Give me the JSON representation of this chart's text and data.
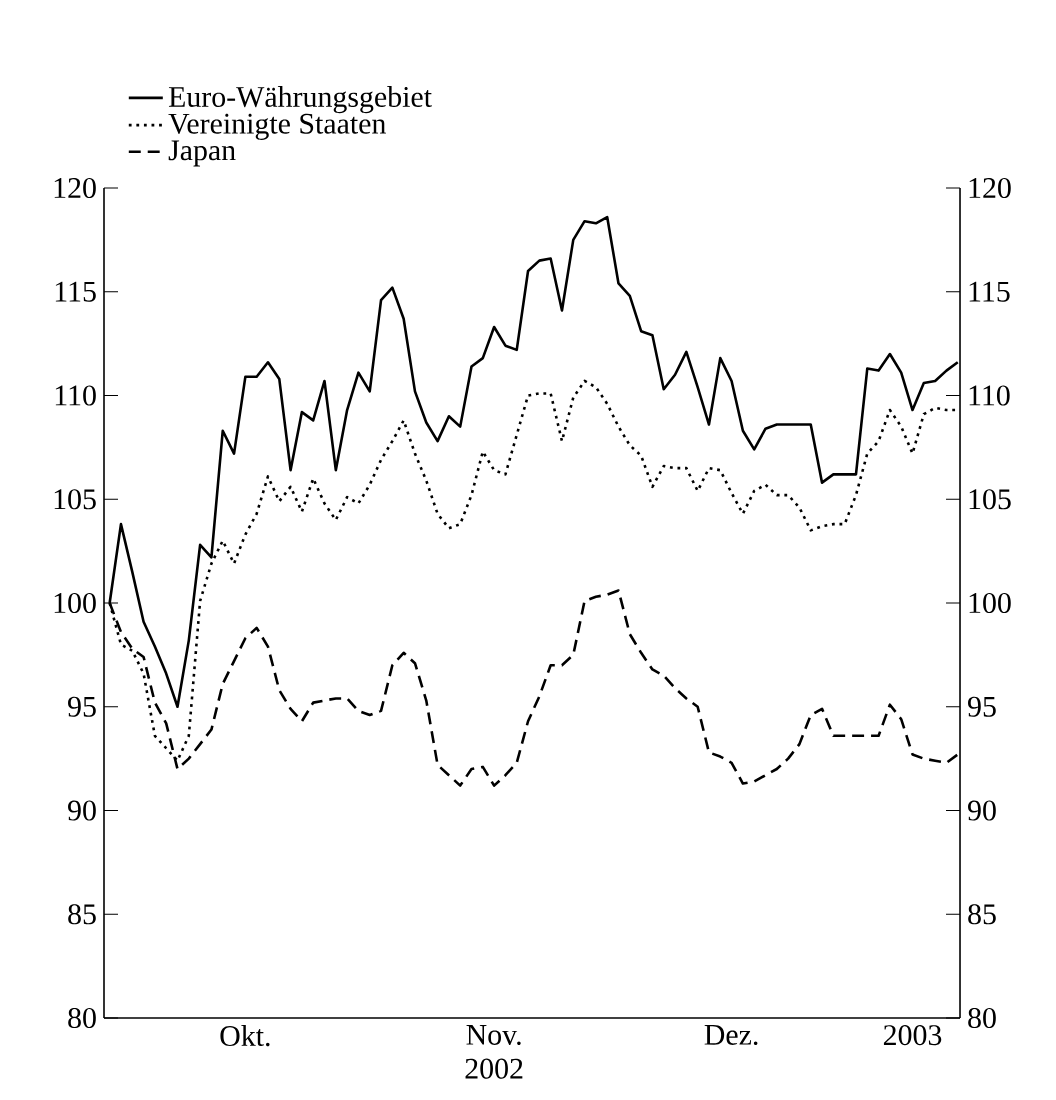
{
  "chart_data": {
    "type": "line",
    "legend": "top left",
    "grid": false,
    "categories": [
      null,
      null,
      null,
      null,
      null,
      null,
      null,
      null,
      null,
      null,
      null,
      null,
      "Okt.",
      null,
      null,
      null,
      null,
      null,
      null,
      null,
      null,
      null,
      null,
      null,
      null,
      null,
      null,
      null,
      null,
      null,
      null,
      null,
      null,
      null,
      "Nov. 2002",
      null,
      null,
      null,
      null,
      null,
      null,
      null,
      null,
      null,
      null,
      null,
      null,
      null,
      null,
      null,
      null,
      null,
      null,
      null,
      null,
      "Dez.",
      null,
      null,
      null,
      null,
      null,
      null,
      null,
      null,
      null,
      null,
      null,
      null,
      null,
      null,
      null,
      "2003",
      null,
      null,
      null,
      null
    ],
    "series": [
      {
        "name": "Euro-Währungsgebiet",
        "color": "#000000",
        "line_style": "solid",
        "values": [
          100.0,
          103.8,
          101.5,
          99.1,
          97.9,
          96.6,
          95.0,
          98.2,
          102.8,
          102.2,
          108.3,
          107.2,
          110.9,
          110.9,
          111.6,
          110.8,
          106.4,
          109.2,
          108.8,
          110.7,
          106.4,
          109.3,
          111.1,
          110.2,
          114.6,
          115.2,
          113.7,
          110.2,
          108.7,
          107.8,
          109.0,
          108.5,
          111.4,
          111.8,
          113.3,
          112.4,
          112.2,
          116.0,
          116.5,
          116.6,
          114.1,
          117.5,
          118.4,
          118.3,
          118.6,
          115.4,
          114.8,
          113.1,
          112.9,
          110.3,
          111.0,
          112.1,
          110.4,
          108.6,
          111.8,
          110.7,
          108.3,
          107.4,
          108.4,
          108.6,
          108.6,
          108.6,
          108.6,
          105.8,
          106.2,
          106.2,
          106.2,
          111.3,
          111.2,
          112.0,
          111.1,
          109.3,
          110.6,
          110.7,
          111.2,
          111.6
        ]
      },
      {
        "name": "Vereinigte Staaten",
        "color": "#000000",
        "line_style": "dotted",
        "values": [
          100.0,
          98.0,
          97.7,
          96.6,
          93.6,
          93.0,
          92.4,
          93.6,
          100.1,
          101.9,
          103.0,
          101.9,
          103.3,
          104.3,
          106.1,
          104.9,
          105.6,
          104.4,
          106.0,
          104.8,
          104.0,
          105.1,
          104.8,
          105.7,
          106.9,
          107.8,
          108.8,
          107.2,
          105.9,
          104.3,
          103.6,
          103.8,
          105.2,
          107.3,
          106.4,
          106.2,
          108.1,
          110.0,
          110.1,
          110.1,
          107.8,
          109.9,
          110.7,
          110.4,
          109.6,
          108.5,
          107.6,
          107.1,
          105.6,
          106.6,
          106.5,
          106.5,
          105.4,
          106.5,
          106.4,
          105.3,
          104.3,
          105.4,
          105.7,
          105.2,
          105.2,
          104.6,
          103.5,
          103.7,
          103.8,
          103.8,
          105.2,
          107.2,
          107.8,
          109.3,
          108.5,
          107.2,
          109.1,
          109.4,
          109.3,
          109.3
        ]
      },
      {
        "name": "Japan",
        "color": "#000000",
        "line_style": "dashed",
        "values": [
          100.0,
          98.6,
          97.8,
          97.4,
          95.2,
          94.2,
          92.0,
          92.5,
          93.2,
          93.9,
          96.1,
          97.2,
          98.3,
          98.8,
          97.9,
          95.8,
          94.9,
          94.3,
          95.2,
          95.3,
          95.4,
          95.4,
          94.8,
          94.6,
          94.8,
          97.0,
          97.6,
          97.1,
          95.3,
          92.2,
          91.7,
          91.2,
          92.0,
          92.1,
          91.2,
          91.7,
          92.3,
          94.3,
          95.5,
          97.0,
          97.0,
          97.5,
          100.1,
          100.3,
          100.4,
          100.6,
          98.5,
          97.6,
          96.8,
          96.5,
          95.9,
          95.4,
          95.0,
          92.8,
          92.6,
          92.3,
          91.3,
          91.4,
          91.7,
          92.0,
          92.5,
          93.2,
          94.6,
          94.9,
          93.6,
          93.6,
          93.6,
          93.6,
          93.6,
          95.1,
          94.4,
          92.7,
          92.5,
          92.4,
          92.3,
          92.7
        ]
      }
    ],
    "ylim": [
      80,
      120
    ],
    "yticks": [
      80,
      85,
      90,
      95,
      100,
      105,
      110,
      115,
      120
    ],
    "y2lim": [
      80,
      120
    ],
    "y2ticks": [
      80,
      85,
      90,
      95,
      100,
      105,
      110,
      115,
      120
    ]
  }
}
